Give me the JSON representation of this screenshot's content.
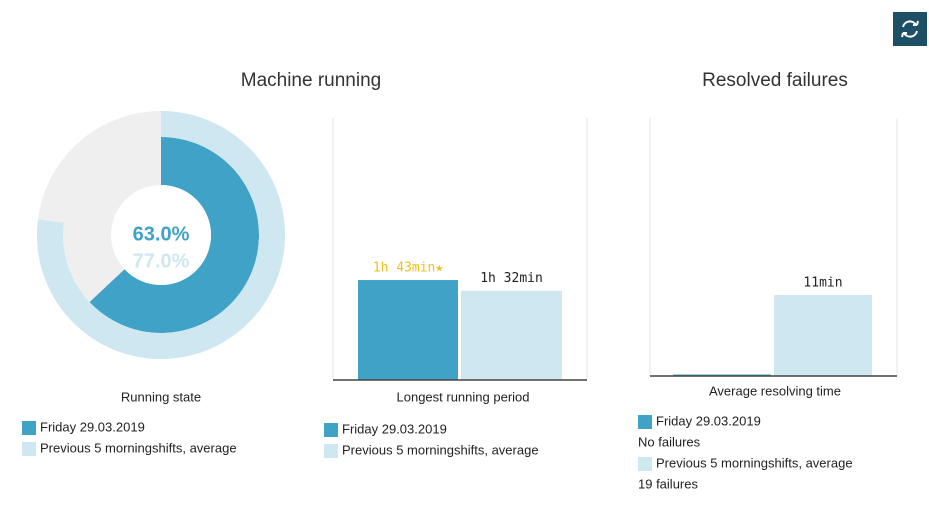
{
  "section_titles": [
    "Machine running",
    "Resolved failures"
  ],
  "chart_data": [
    {
      "type": "donut",
      "xlabel": "Running state",
      "ylim": [
        0,
        100
      ],
      "series": [
        {
          "name": "Friday 29.03.2019",
          "color": "#3fa2c6",
          "values": [
            63.0
          ],
          "value_labels": [
            "63.0%"
          ]
        },
        {
          "name": "Previous 5 morningshifts, average",
          "color": "#cfe7f1",
          "values": [
            77.0
          ],
          "value_labels": [
            "77.0%"
          ]
        }
      ]
    },
    {
      "type": "bar",
      "xlabel": "Longest running period",
      "ylim": [
        0,
        270
      ],
      "series": [
        {
          "name": "Friday 29.03.2019",
          "color": "#3fa2c6",
          "values": [
            103
          ],
          "value_labels": [
            "1h 43min★"
          ],
          "label_color": "#f0c020"
        },
        {
          "name": "Previous 5 morningshifts, average",
          "color": "#cfe7f1",
          "values": [
            92
          ],
          "value_labels": [
            "1h 32min"
          ],
          "label_color": "#222222"
        }
      ]
    },
    {
      "type": "bar",
      "xlabel": "Average resolving time",
      "ylim": [
        0,
        35
      ],
      "series": [
        {
          "name": "Friday 29.03.2019",
          "color": "#3fa2c6",
          "values": [
            0
          ],
          "legend_note": "No failures"
        },
        {
          "name": "Previous 5 morningshifts, average",
          "color": "#cfe7f1",
          "values": [
            11
          ],
          "value_labels": [
            "11min"
          ],
          "label_color": "#222222",
          "legend_note": "19 failures"
        }
      ]
    }
  ]
}
